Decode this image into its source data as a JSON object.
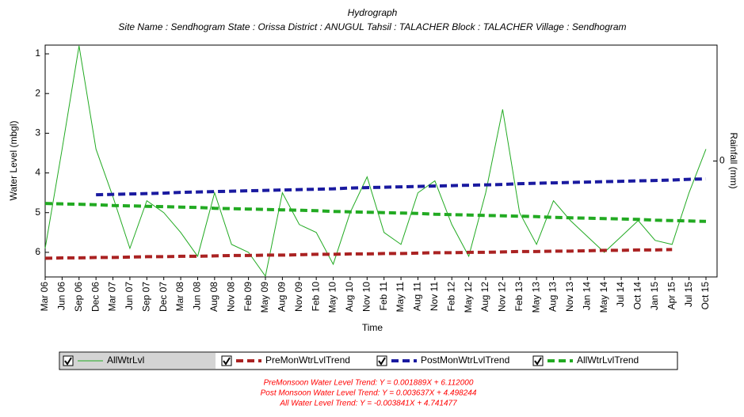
{
  "chart_data": {
    "type": "line",
    "title": "Hydrograph",
    "subtitle": "Site Name : Sendhogram  State : Orissa District : ANUGUL  Tahsil : TALACHER  Block : TALACHER Village : Sendhogram",
    "x_label": "Time",
    "y_label": "Water Level (mbgl)",
    "y2_label": "Rainfall (mm)",
    "categories": [
      "Mar 06",
      "Jun 06",
      "Sep 06",
      "Dec 06",
      "Mar 07",
      "Jun 07",
      "Sep 07",
      "Dec 07",
      "Mar 08",
      "Jun 08",
      "Aug 08",
      "Nov 08",
      "Feb 09",
      "May 09",
      "Aug 09",
      "Nov 09",
      "Feb 10",
      "May 10",
      "Aug 10",
      "Nov 10",
      "Feb 11",
      "May 11",
      "Aug 11",
      "Nov 11",
      "Feb 12",
      "May 12",
      "Aug 12",
      "Nov 12",
      "Feb 13",
      "May 13",
      "Aug 13",
      "Nov 13",
      "Jan 14",
      "May 14",
      "Jul 14",
      "Oct 14",
      "Jan 15",
      "Apr 15",
      "Jul 15",
      "Oct 15"
    ],
    "series": [
      {
        "name": "AllWtrLvl",
        "color": "#22aa22",
        "style": "solid",
        "values": [
          5.9,
          3.4,
          0.8,
          3.4,
          4.6,
          5.9,
          4.7,
          5.0,
          5.5,
          6.1,
          4.5,
          5.8,
          6.0,
          6.6,
          4.5,
          5.3,
          5.5,
          6.3,
          5.0,
          4.1,
          5.5,
          5.8,
          4.5,
          4.2,
          5.3,
          6.1,
          4.5,
          2.4,
          5.0,
          5.8,
          4.7,
          5.2,
          5.6,
          6.0,
          5.6,
          5.2,
          5.7,
          5.8,
          4.5,
          3.4
        ]
      },
      {
        "name": "PreMonWtrLvlTrend",
        "color": "#aa2222",
        "style": "dashed",
        "values": [
          6.15,
          6.14,
          6.14,
          6.13,
          6.13,
          6.12,
          6.11,
          6.11,
          6.1,
          6.1,
          6.09,
          6.08,
          6.08,
          6.07,
          6.07,
          6.06,
          6.05,
          6.05,
          6.04,
          6.04,
          6.03,
          6.03,
          6.02,
          6.01,
          6.01,
          6.0,
          6.0,
          5.99,
          5.98,
          5.98,
          5.97,
          5.97,
          5.96,
          5.95,
          5.95,
          5.94,
          5.94,
          5.93,
          null,
          null
        ]
      },
      {
        "name": "PostMonWtrLvlTrend",
        "color": "#1a1aa0",
        "style": "dashed",
        "values": [
          null,
          null,
          null,
          4.55,
          4.54,
          4.53,
          4.52,
          4.51,
          4.49,
          4.48,
          4.47,
          4.46,
          4.45,
          4.44,
          4.43,
          4.42,
          4.41,
          4.4,
          4.38,
          4.37,
          4.36,
          4.35,
          4.34,
          4.33,
          4.32,
          4.31,
          4.3,
          4.29,
          4.27,
          4.26,
          4.25,
          4.24,
          4.23,
          4.22,
          4.21,
          4.2,
          4.19,
          4.18,
          4.16,
          4.15
        ]
      },
      {
        "name": "AllWtrLvlTrend",
        "color": "#22aa22",
        "style": "dashed",
        "values": [
          4.77,
          4.78,
          4.79,
          4.8,
          4.82,
          4.83,
          4.84,
          4.85,
          4.86,
          4.87,
          4.89,
          4.9,
          4.91,
          4.92,
          4.93,
          4.94,
          4.95,
          4.97,
          4.98,
          4.99,
          5.0,
          5.01,
          5.02,
          5.04,
          5.05,
          5.06,
          5.07,
          5.08,
          5.09,
          5.1,
          5.12,
          5.13,
          5.14,
          5.15,
          5.16,
          5.17,
          5.19,
          5.2,
          5.21,
          5.22
        ]
      }
    ],
    "ylim": [
      0.78,
      6.62
    ],
    "yticks": [
      1,
      2,
      3,
      4,
      5,
      6
    ],
    "y_inverted": true,
    "y2lim": [
      -1,
      1
    ],
    "y2ticks": [
      0
    ],
    "annotations": [
      "PreMonsoon Water Level Trend: Y = 0.001889X + 6.112000",
      "Post Monsoon Water Level Trend: Y = 0.003637X + 4.498244",
      "All Water Level Trend: Y = -0.003841X + 4.741477"
    ],
    "annotation_color": "#ff0000"
  }
}
